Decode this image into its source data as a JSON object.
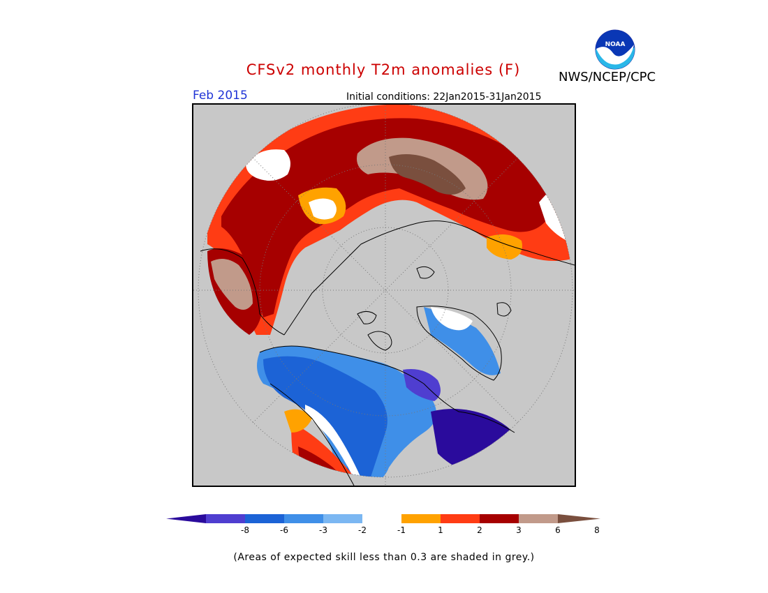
{
  "header": {
    "title": "CFSv2 monthly T2m anomalies (F)",
    "agency": "NWS/NCEP/CPC",
    "month": "Feb 2015",
    "initial_conditions": "Initial conditions: 22Jan2015-31Jan2015",
    "logo_text": "NOAA"
  },
  "legend": {
    "colors": [
      "#2a0b9c",
      "#4f3ed0",
      "#1c63d6",
      "#3f8fe8",
      "#7bb7f2",
      "#ffffff",
      "#ffa200",
      "#ff3c14",
      "#a60000",
      "#c19a8a",
      "#7a4f3e"
    ],
    "tick_labels": [
      "-8",
      "-6",
      "-3",
      "-2",
      "-1",
      "1",
      "2",
      "3",
      "6",
      "8"
    ]
  },
  "footer": {
    "note": "(Areas of expected skill less than 0.3 are shaded in grey.)"
  },
  "map": {
    "projection": "north-polar-stereographic",
    "background_color": "#c8c8c8",
    "skill_mask_color": "#c8c8c8"
  }
}
